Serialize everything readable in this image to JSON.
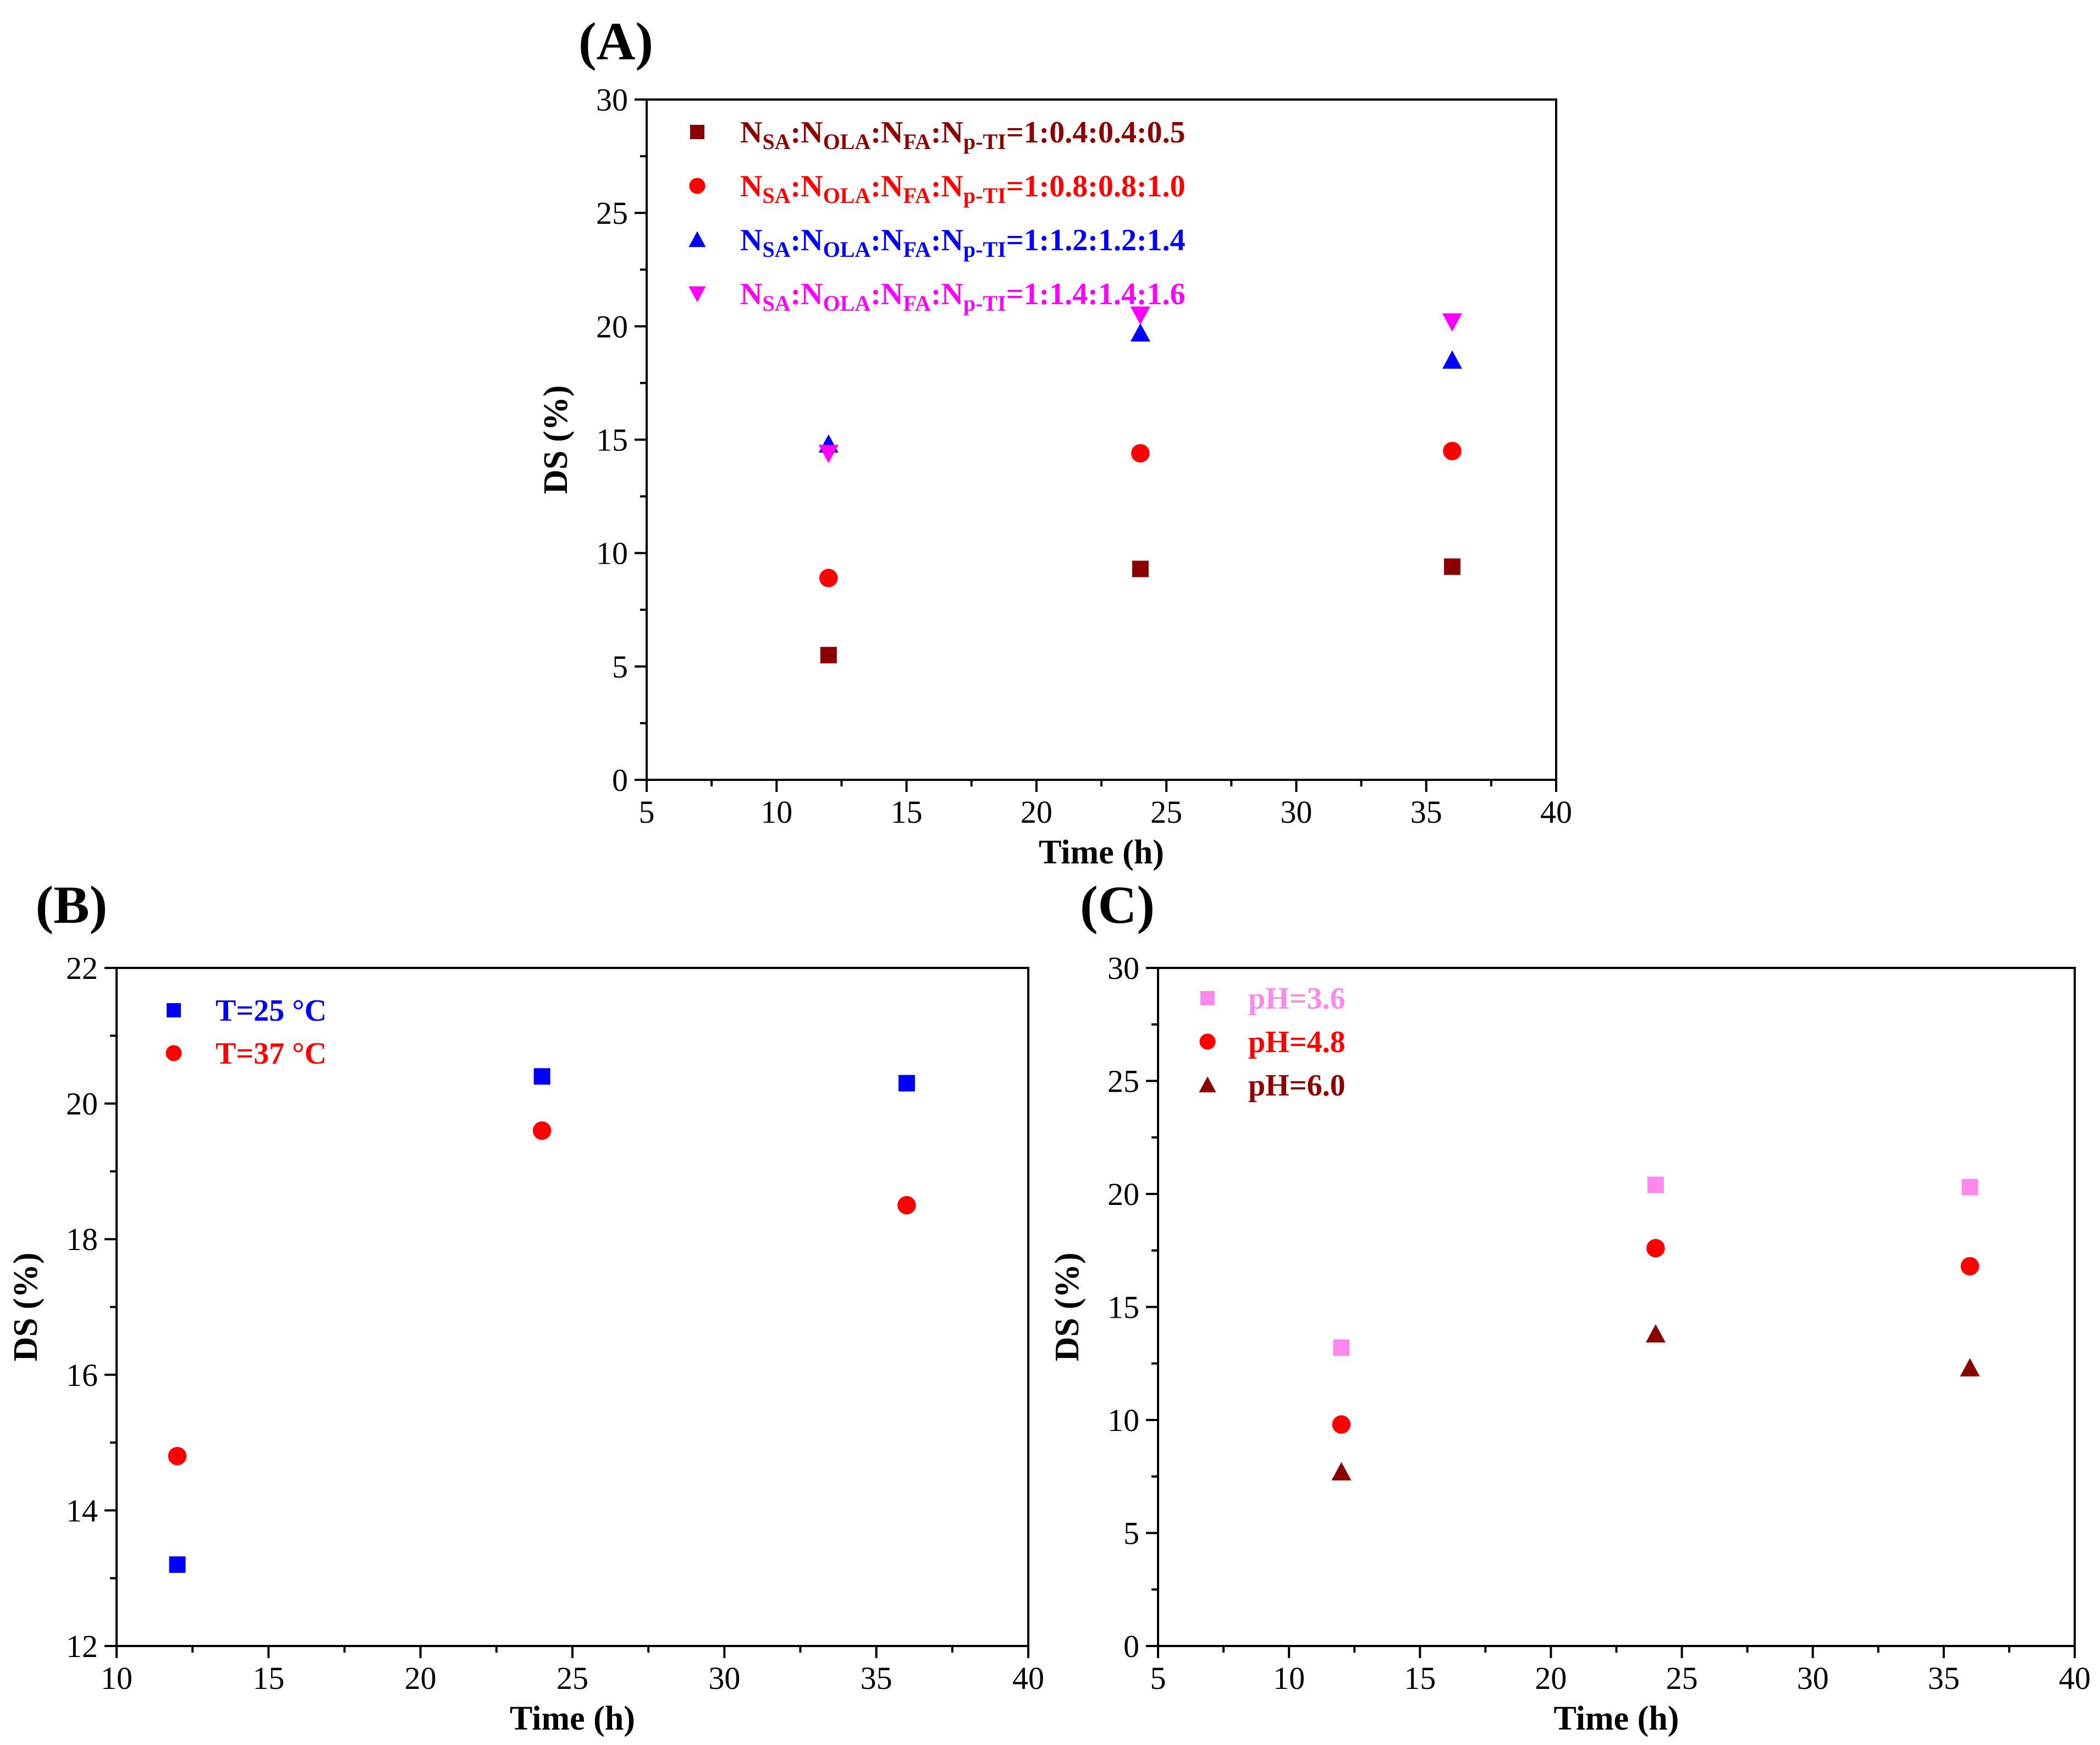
{
  "chart_data": [
    {
      "id": "A",
      "panel_label": "(A)",
      "type": "scatter",
      "xlabel": "Time (h)",
      "ylabel": "DS (%)",
      "xlim": [
        5,
        40
      ],
      "ylim": [
        0,
        30
      ],
      "xticks": [
        5,
        10,
        15,
        20,
        25,
        30,
        35,
        40
      ],
      "yticks": [
        0,
        5,
        10,
        15,
        20,
        25,
        30
      ],
      "xminor": 2.5,
      "yminor": 2.5,
      "legend_position": "top-left",
      "series": [
        {
          "name": "NSA:NOLA:NFA:Np-TI=1:0.4:0.4:0.5",
          "legend_parts": [
            [
              "N",
              ""
            ],
            [
              "SA",
              "sub"
            ],
            [
              ":N",
              ""
            ],
            [
              "OLA",
              "sub"
            ],
            [
              ":N",
              ""
            ],
            [
              "FA",
              "sub"
            ],
            [
              ":N",
              ""
            ],
            [
              "p-TI",
              "sub"
            ],
            [
              "=1:0.4:0.4:0.5",
              ""
            ]
          ],
          "marker": "square",
          "color": "#8b0000",
          "x": [
            12,
            24,
            36
          ],
          "y": [
            5.5,
            9.3,
            9.4
          ]
        },
        {
          "name": "NSA:NOLA:NFA:Np-TI=1:0.8:0.8:1.0",
          "legend_parts": [
            [
              "N",
              ""
            ],
            [
              "SA",
              "sub"
            ],
            [
              ":N",
              ""
            ],
            [
              "OLA",
              "sub"
            ],
            [
              ":N",
              ""
            ],
            [
              "FA",
              "sub"
            ],
            [
              ":N",
              ""
            ],
            [
              "p-TI",
              "sub"
            ],
            [
              "=1:0.8:0.8:1.0",
              ""
            ]
          ],
          "marker": "circle",
          "color": "#ff0000",
          "x": [
            12,
            24,
            36
          ],
          "y": [
            8.9,
            14.4,
            14.5
          ]
        },
        {
          "name": "NSA:NOLA:NFA:Np-TI=1:1.2:1.2:1.4",
          "legend_parts": [
            [
              "N",
              ""
            ],
            [
              "SA",
              "sub"
            ],
            [
              ":N",
              ""
            ],
            [
              "OLA",
              "sub"
            ],
            [
              ":N",
              ""
            ],
            [
              "FA",
              "sub"
            ],
            [
              ":N",
              ""
            ],
            [
              "p-TI",
              "sub"
            ],
            [
              "=1:1.2:1.2:1.4",
              ""
            ]
          ],
          "marker": "triangle-up",
          "color": "#0000ff",
          "x": [
            12,
            24,
            36
          ],
          "y": [
            14.8,
            19.7,
            18.5
          ]
        },
        {
          "name": "NSA:NOLA:NFA:Np-TI=1:1.4:1.4:1.6",
          "legend_parts": [
            [
              "N",
              ""
            ],
            [
              "SA",
              "sub"
            ],
            [
              ":N",
              ""
            ],
            [
              "OLA",
              "sub"
            ],
            [
              ":N",
              ""
            ],
            [
              "FA",
              "sub"
            ],
            [
              ":N",
              ""
            ],
            [
              "p-TI",
              "sub"
            ],
            [
              "=1:1.4:1.4:1.6",
              ""
            ]
          ],
          "marker": "triangle-down",
          "color": "#ff00ff",
          "x": [
            12,
            24,
            36
          ],
          "y": [
            14.4,
            20.5,
            20.2
          ]
        }
      ]
    },
    {
      "id": "B",
      "panel_label": "(B)",
      "type": "scatter",
      "xlabel": "Time (h)",
      "ylabel": "DS (%)",
      "xlim": [
        10,
        40
      ],
      "ylim": [
        12,
        22
      ],
      "xticks": [
        10,
        15,
        20,
        25,
        30,
        35,
        40
      ],
      "yticks": [
        12,
        14,
        16,
        18,
        20,
        22
      ],
      "xminor": 2.5,
      "yminor": 1,
      "legend_position": "top-left",
      "series": [
        {
          "name": "T=25 °C",
          "legend_parts": [
            [
              "T=25 °C",
              ""
            ]
          ],
          "marker": "square",
          "color": "#0000ff",
          "x": [
            12,
            24,
            36
          ],
          "y": [
            13.2,
            20.4,
            20.3
          ]
        },
        {
          "name": "T=37 °C",
          "legend_parts": [
            [
              "T=37 °C",
              ""
            ]
          ],
          "marker": "circle",
          "color": "#ff0000",
          "x": [
            12,
            24,
            36
          ],
          "y": [
            14.8,
            19.6,
            18.5
          ]
        }
      ]
    },
    {
      "id": "C",
      "panel_label": "(C)",
      "type": "scatter",
      "xlabel": "Time (h)",
      "ylabel": "DS (%)",
      "xlim": [
        5,
        40
      ],
      "ylim": [
        0,
        30
      ],
      "xticks": [
        5,
        10,
        15,
        20,
        25,
        30,
        35,
        40
      ],
      "yticks": [
        0,
        5,
        10,
        15,
        20,
        25,
        30
      ],
      "xminor": 2.5,
      "yminor": 2.5,
      "legend_position": "top-left",
      "series": [
        {
          "name": "pH=3.6",
          "legend_parts": [
            [
              "pH=3.6",
              ""
            ]
          ],
          "marker": "square",
          "color": "#ff88ee",
          "x": [
            12,
            24,
            36
          ],
          "y": [
            13.2,
            20.4,
            20.3
          ]
        },
        {
          "name": "pH=4.8",
          "legend_parts": [
            [
              "pH=4.8",
              ""
            ]
          ],
          "marker": "circle",
          "color": "#ff0000",
          "x": [
            12,
            24,
            36
          ],
          "y": [
            9.8,
            17.6,
            16.8
          ]
        },
        {
          "name": "pH=6.0",
          "legend_parts": [
            [
              "pH=6.0",
              ""
            ]
          ],
          "marker": "triangle-up",
          "color": "#8b0000",
          "x": [
            12,
            24,
            36
          ],
          "y": [
            7.7,
            13.8,
            12.3
          ]
        }
      ]
    }
  ]
}
